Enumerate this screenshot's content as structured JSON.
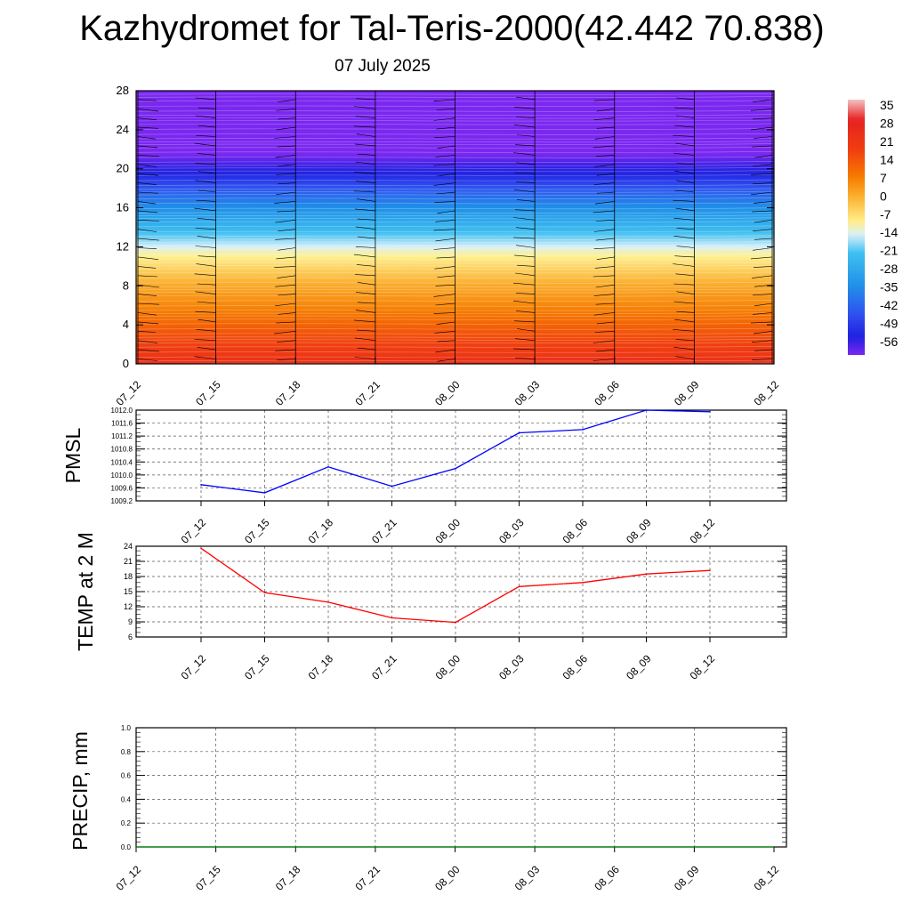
{
  "header": {
    "title": "Kazhydromet for Tal-Teris-2000(42.442 70.838)",
    "subtitle": "07 July 2025"
  },
  "chart_data": [
    {
      "type": "heatmap",
      "title": "",
      "xlabel": "",
      "ylabel": "",
      "categories": [
        "07_12",
        "07_15",
        "07_18",
        "07_21",
        "08_00",
        "08_03",
        "08_06",
        "08_09",
        "08_12"
      ],
      "yticks": [
        0,
        4,
        8,
        12,
        16,
        20,
        24,
        28
      ],
      "ylim": [
        0,
        28
      ],
      "temperature_profile": {
        "height": [
          0,
          2,
          4,
          6,
          8,
          10,
          11.5,
          12,
          14,
          16,
          18,
          19.5,
          20.5,
          21.5,
          23,
          28
        ],
        "temp": [
          24,
          18,
          12,
          6,
          1,
          -6,
          -12,
          -15,
          -25,
          -35,
          -45,
          -54,
          -58,
          -62,
          -64,
          -66
        ]
      },
      "wind_barbs": true,
      "colorbar": {
        "labels": [
          "35",
          "28",
          "21",
          "14",
          "7",
          "0",
          "-7",
          "-14",
          "-21",
          "-28",
          "-35",
          "-42",
          "-49",
          "-56"
        ],
        "stops": [
          {
            "t": 38,
            "color": "#f5c0c0"
          },
          {
            "t": 30,
            "color": "#e62020"
          },
          {
            "t": 18,
            "color": "#f04010"
          },
          {
            "t": 8,
            "color": "#f57a00"
          },
          {
            "t": 0,
            "color": "#fbb030"
          },
          {
            "t": -10,
            "color": "#fff090"
          },
          {
            "t": -15,
            "color": "#d8f0fa"
          },
          {
            "t": -22,
            "color": "#40c0f0"
          },
          {
            "t": -35,
            "color": "#2090e8"
          },
          {
            "t": -46,
            "color": "#3050f0"
          },
          {
            "t": -55,
            "color": "#2020e0"
          },
          {
            "t": -62,
            "color": "#7a28f0"
          }
        ]
      }
    },
    {
      "type": "line",
      "ylabel": "PMSL",
      "categories": [
        "07_12",
        "07_15",
        "07_18",
        "07_21",
        "08_00",
        "08_03",
        "08_06",
        "08_09",
        "08_12"
      ],
      "yticks": [
        "1009.2",
        "1009.6",
        "1010.0",
        "1010.4",
        "1010.8",
        "1011.2",
        "1011.6",
        "1012.0"
      ],
      "ylim": [
        1009.2,
        1012.0
      ],
      "series": [
        {
          "values": [
            1009.7,
            1009.45,
            1010.25,
            1009.65,
            1010.2,
            1011.3,
            1011.4,
            1012.0,
            1011.95
          ],
          "color": "#0000ff"
        }
      ]
    },
    {
      "type": "line",
      "ylabel": "TEMP at 2 M",
      "categories": [
        "07_12",
        "07_15",
        "07_18",
        "07_21",
        "08_00",
        "08_03",
        "08_06",
        "08_09",
        "08_12"
      ],
      "yticks": [
        "6",
        "9",
        "12",
        "15",
        "18",
        "21",
        "24"
      ],
      "ylim": [
        6,
        24
      ],
      "series": [
        {
          "values": [
            23.6,
            14.8,
            12.9,
            9.8,
            8.9,
            16.0,
            16.8,
            18.5,
            19.2
          ],
          "color": "#ff0000"
        }
      ]
    },
    {
      "type": "line",
      "ylabel": "PRECIP, mm",
      "categories": [
        "07_12",
        "07_15",
        "07_18",
        "07_21",
        "08_00",
        "08_03",
        "08_06",
        "08_09",
        "08_12"
      ],
      "yticks": [
        "0.0",
        "0.2",
        "0.4",
        "0.6",
        "0.8",
        "1.0"
      ],
      "ylim": [
        0,
        1.0
      ],
      "series": [
        {
          "values": [
            0,
            0,
            0,
            0,
            0,
            0,
            0,
            0,
            0
          ],
          "color": "#008000"
        }
      ]
    }
  ]
}
